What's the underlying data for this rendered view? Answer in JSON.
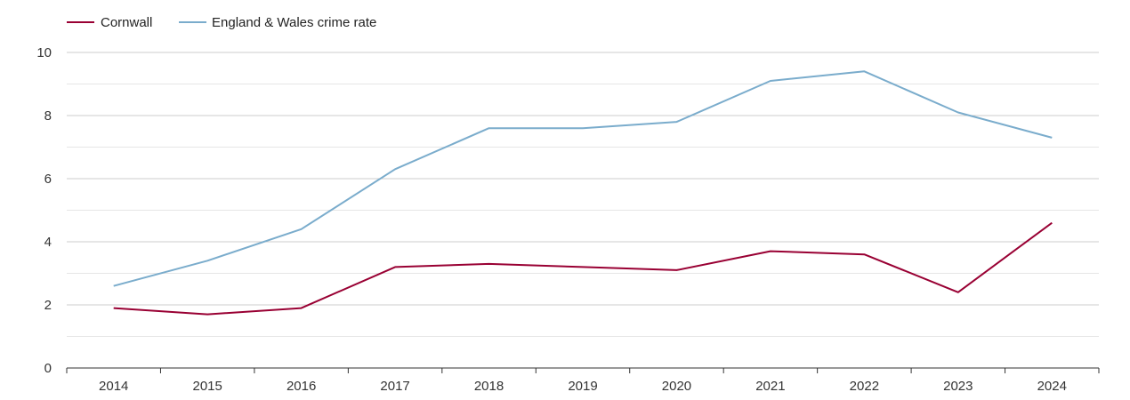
{
  "chart_data": {
    "type": "line",
    "title": "",
    "xlabel": "",
    "ylabel": "",
    "ylim": [
      0,
      10
    ],
    "yticks": [
      0,
      2,
      4,
      6,
      8,
      10
    ],
    "grid": true,
    "legend_position": "top-left",
    "categories": [
      "2014",
      "2015",
      "2016",
      "2017",
      "2018",
      "2019",
      "2020",
      "2021",
      "2022",
      "2023",
      "2024"
    ],
    "series": [
      {
        "name": "Cornwall",
        "color": "#990033",
        "values": [
          1.9,
          1.7,
          1.9,
          3.2,
          3.3,
          3.2,
          3.1,
          3.7,
          3.6,
          2.4,
          4.6
        ]
      },
      {
        "name": "England & Wales crime rate",
        "color": "#7aaccc",
        "values": [
          2.6,
          3.4,
          4.4,
          6.3,
          7.6,
          7.6,
          7.8,
          9.1,
          9.4,
          8.1,
          7.3
        ]
      }
    ]
  }
}
